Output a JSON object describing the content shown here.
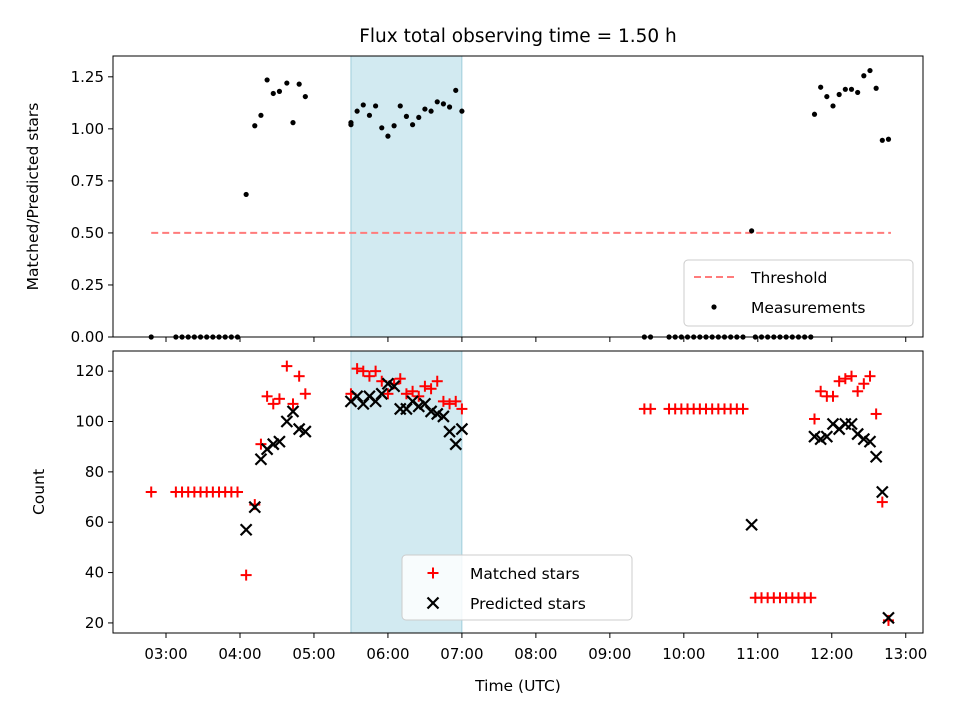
{
  "title": "Flux total observing time = 1.50 h",
  "colors": {
    "matched": "#ff0000",
    "predicted": "#000000",
    "measurements": "#000000",
    "threshold": "#ff7b7b",
    "highlight": "#add8e6"
  },
  "chart_data": [
    {
      "type": "scatter",
      "panel": "top",
      "xlabel": "",
      "ylabel": "Matched/Predicted stars",
      "xlim": [
        "02:17",
        "13:14"
      ],
      "ylim": [
        0,
        1.35
      ],
      "yticks": [
        0.0,
        0.25,
        0.5,
        0.75,
        1.0,
        1.25
      ],
      "ytick_labels": [
        "0.00",
        "0.25",
        "0.50",
        "0.75",
        "1.00",
        "1.25"
      ],
      "highlight_span": [
        "05:30",
        "07:00"
      ],
      "legend_position": "lower right",
      "threshold": {
        "name": "Threshold",
        "y": 0.5,
        "x_range": [
          "02:48",
          "12:48"
        ]
      },
      "series": [
        {
          "name": "Measurements",
          "points": [
            [
              "02:48",
              0
            ],
            [
              "03:08",
              0
            ],
            [
              "03:13",
              0
            ],
            [
              "03:18",
              0
            ],
            [
              "03:23",
              0
            ],
            [
              "03:28",
              0
            ],
            [
              "03:33",
              0
            ],
            [
              "03:38",
              0
            ],
            [
              "03:43",
              0
            ],
            [
              "03:48",
              0
            ],
            [
              "03:53",
              0
            ],
            [
              "03:58",
              0
            ],
            [
              "04:05",
              0.685
            ],
            [
              "04:12",
              1.015
            ],
            [
              "04:17",
              1.065
            ],
            [
              "04:22",
              1.235
            ],
            [
              "04:27",
              1.17
            ],
            [
              "04:32",
              1.18
            ],
            [
              "04:38",
              1.22
            ],
            [
              "04:43",
              1.03
            ],
            [
              "04:48",
              1.215
            ],
            [
              "04:53",
              1.155
            ],
            [
              "05:30",
              1.03
            ],
            [
              "05:30",
              1.02
            ],
            [
              "05:35",
              1.085
            ],
            [
              "05:40",
              1.115
            ],
            [
              "05:45",
              1.065
            ],
            [
              "05:50",
              1.11
            ],
            [
              "05:55",
              1.005
            ],
            [
              "06:00",
              0.965
            ],
            [
              "06:05",
              1.015
            ],
            [
              "06:10",
              1.11
            ],
            [
              "06:15",
              1.06
            ],
            [
              "06:20",
              1.02
            ],
            [
              "06:25",
              1.055
            ],
            [
              "06:30",
              1.095
            ],
            [
              "06:35",
              1.085
            ],
            [
              "06:40",
              1.13
            ],
            [
              "06:45",
              1.12
            ],
            [
              "06:50",
              1.105
            ],
            [
              "06:55",
              1.185
            ],
            [
              "07:00",
              1.085
            ],
            [
              "09:28",
              0
            ],
            [
              "09:33",
              0
            ],
            [
              "09:48",
              0
            ],
            [
              "09:53",
              0
            ],
            [
              "09:58",
              0
            ],
            [
              "10:03",
              0
            ],
            [
              "10:08",
              0
            ],
            [
              "10:13",
              0
            ],
            [
              "10:18",
              0
            ],
            [
              "10:23",
              0
            ],
            [
              "10:28",
              0
            ],
            [
              "10:33",
              0
            ],
            [
              "10:38",
              0
            ],
            [
              "10:43",
              0
            ],
            [
              "10:48",
              0
            ],
            [
              "10:55",
              0.51
            ],
            [
              "10:58",
              0
            ],
            [
              "11:03",
              0
            ],
            [
              "11:08",
              0
            ],
            [
              "11:13",
              0
            ],
            [
              "11:18",
              0
            ],
            [
              "11:23",
              0
            ],
            [
              "11:28",
              0
            ],
            [
              "11:33",
              0
            ],
            [
              "11:38",
              0
            ],
            [
              "11:43",
              0
            ],
            [
              "11:46",
              1.07
            ],
            [
              "11:51",
              1.2
            ],
            [
              "11:56",
              1.155
            ],
            [
              "12:01",
              1.11
            ],
            [
              "12:06",
              1.165
            ],
            [
              "12:11",
              1.19
            ],
            [
              "12:16",
              1.19
            ],
            [
              "12:21",
              1.175
            ],
            [
              "12:26",
              1.255
            ],
            [
              "12:31",
              1.28
            ],
            [
              "12:36",
              1.195
            ],
            [
              "12:41",
              0.945
            ],
            [
              "12:46",
              0.95
            ]
          ]
        }
      ]
    },
    {
      "type": "scatter",
      "panel": "bottom",
      "xlabel": "Time (UTC)",
      "ylabel": "Count",
      "xlim": [
        "02:17",
        "13:14"
      ],
      "ylim": [
        16,
        128
      ],
      "yticks": [
        20,
        40,
        60,
        80,
        100,
        120
      ],
      "xticks": [
        "03:00",
        "04:00",
        "05:00",
        "06:00",
        "07:00",
        "08:00",
        "09:00",
        "10:00",
        "11:00",
        "12:00",
        "13:00"
      ],
      "highlight_span": [
        "05:30",
        "07:00"
      ],
      "legend_position": "lower center",
      "series": [
        {
          "name": "Matched stars",
          "marker": "plus",
          "points": [
            [
              "02:48",
              72
            ],
            [
              "03:08",
              72
            ],
            [
              "03:13",
              72
            ],
            [
              "03:18",
              72
            ],
            [
              "03:23",
              72
            ],
            [
              "03:28",
              72
            ],
            [
              "03:33",
              72
            ],
            [
              "03:38",
              72
            ],
            [
              "03:43",
              72
            ],
            [
              "03:48",
              72
            ],
            [
              "03:53",
              72
            ],
            [
              "03:58",
              72
            ],
            [
              "04:05",
              39
            ],
            [
              "04:12",
              67
            ],
            [
              "04:17",
              91
            ],
            [
              "04:22",
              110
            ],
            [
              "04:27",
              107
            ],
            [
              "04:32",
              109
            ],
            [
              "04:38",
              122
            ],
            [
              "04:43",
              107
            ],
            [
              "04:48",
              118
            ],
            [
              "04:53",
              111
            ],
            [
              "05:30",
              111
            ],
            [
              "05:35",
              121
            ],
            [
              "05:40",
              120
            ],
            [
              "05:45",
              118
            ],
            [
              "05:50",
              120
            ],
            [
              "05:55",
              116
            ],
            [
              "06:00",
              111
            ],
            [
              "06:05",
              115
            ],
            [
              "06:10",
              117
            ],
            [
              "06:15",
              111
            ],
            [
              "06:20",
              112
            ],
            [
              "06:25",
              110
            ],
            [
              "06:30",
              114
            ],
            [
              "06:35",
              113
            ],
            [
              "06:40",
              116
            ],
            [
              "06:45",
              108
            ],
            [
              "06:50",
              107
            ],
            [
              "06:55",
              108
            ],
            [
              "07:00",
              105
            ],
            [
              "09:28",
              105
            ],
            [
              "09:33",
              105
            ],
            [
              "09:48",
              105
            ],
            [
              "09:53",
              105
            ],
            [
              "09:58",
              105
            ],
            [
              "10:03",
              105
            ],
            [
              "10:08",
              105
            ],
            [
              "10:13",
              105
            ],
            [
              "10:18",
              105
            ],
            [
              "10:23",
              105
            ],
            [
              "10:28",
              105
            ],
            [
              "10:33",
              105
            ],
            [
              "10:38",
              105
            ],
            [
              "10:43",
              105
            ],
            [
              "10:48",
              105
            ],
            [
              "10:58",
              30
            ],
            [
              "11:03",
              30
            ],
            [
              "11:08",
              30
            ],
            [
              "11:13",
              30
            ],
            [
              "11:18",
              30
            ],
            [
              "11:23",
              30
            ],
            [
              "11:28",
              30
            ],
            [
              "11:33",
              30
            ],
            [
              "11:38",
              30
            ],
            [
              "11:43",
              30
            ],
            [
              "11:46",
              101
            ],
            [
              "11:51",
              112
            ],
            [
              "11:56",
              110
            ],
            [
              "12:01",
              110
            ],
            [
              "12:06",
              116
            ],
            [
              "12:11",
              117
            ],
            [
              "12:16",
              118
            ],
            [
              "12:21",
              112
            ],
            [
              "12:26",
              115
            ],
            [
              "12:31",
              118
            ],
            [
              "12:36",
              103
            ],
            [
              "12:41",
              68
            ],
            [
              "12:46",
              21
            ]
          ]
        },
        {
          "name": "Predicted stars",
          "marker": "x",
          "points": [
            [
              "04:05",
              57
            ],
            [
              "04:12",
              66
            ],
            [
              "04:17",
              85
            ],
            [
              "04:22",
              89
            ],
            [
              "04:27",
              91
            ],
            [
              "04:32",
              92
            ],
            [
              "04:38",
              100
            ],
            [
              "04:43",
              104
            ],
            [
              "04:48",
              97
            ],
            [
              "04:53",
              96
            ],
            [
              "05:30",
              108
            ],
            [
              "05:35",
              110
            ],
            [
              "05:40",
              107
            ],
            [
              "05:45",
              110
            ],
            [
              "05:50",
              108
            ],
            [
              "05:55",
              111
            ],
            [
              "06:00",
              115
            ],
            [
              "06:05",
              114
            ],
            [
              "06:10",
              105
            ],
            [
              "06:15",
              105
            ],
            [
              "06:20",
              108
            ],
            [
              "06:25",
              106
            ],
            [
              "06:30",
              107
            ],
            [
              "06:35",
              104
            ],
            [
              "06:40",
              103
            ],
            [
              "06:45",
              102
            ],
            [
              "06:50",
              96
            ],
            [
              "06:55",
              91
            ],
            [
              "07:00",
              97
            ],
            [
              "10:55",
              59
            ],
            [
              "11:46",
              94
            ],
            [
              "11:51",
              93
            ],
            [
              "11:56",
              94
            ],
            [
              "12:01",
              99
            ],
            [
              "12:06",
              97
            ],
            [
              "12:11",
              99
            ],
            [
              "12:16",
              99
            ],
            [
              "12:21",
              95
            ],
            [
              "12:26",
              93
            ],
            [
              "12:31",
              92
            ],
            [
              "12:36",
              86
            ],
            [
              "12:41",
              72
            ],
            [
              "12:46",
              22
            ]
          ]
        }
      ]
    }
  ]
}
